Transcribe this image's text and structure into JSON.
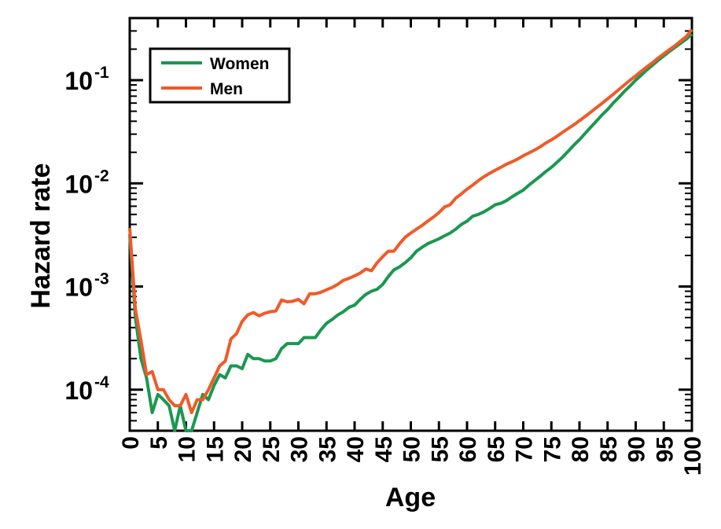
{
  "chart_data": {
    "type": "line",
    "title": "",
    "xlabel": "Age",
    "ylabel": "Hazard rate",
    "xlim": [
      0,
      100
    ],
    "ylim": [
      4e-05,
      0.4
    ],
    "yscale": "log",
    "grid": false,
    "legend_position": "top-left",
    "x_ticks": [
      0,
      5,
      10,
      15,
      20,
      25,
      30,
      35,
      40,
      45,
      50,
      55,
      60,
      65,
      70,
      75,
      80,
      85,
      90,
      95,
      100
    ],
    "y_ticks": [
      {
        "value": 0.0001,
        "base": "10",
        "exp": "-4"
      },
      {
        "value": 0.001,
        "base": "10",
        "exp": "-3"
      },
      {
        "value": 0.01,
        "base": "10",
        "exp": "-2"
      },
      {
        "value": 0.1,
        "base": "10",
        "exp": "-1"
      }
    ],
    "colors": {
      "women": "#1a9850",
      "men": "#f05a28"
    },
    "series": [
      {
        "name": "Women",
        "color": "#1a9850",
        "points": [
          [
            0,
            0.0032
          ],
          [
            1,
            0.0005
          ],
          [
            2,
            0.0002
          ],
          [
            3,
            0.00013
          ],
          [
            4,
            6e-05
          ],
          [
            5,
            9e-05
          ],
          [
            6,
            8e-05
          ],
          [
            7,
            7e-05
          ],
          [
            8,
            4e-05
          ],
          [
            9,
            7e-05
          ],
          [
            10,
            4e-05
          ],
          [
            11,
            4e-05
          ],
          [
            12,
            6e-05
          ],
          [
            13,
            9e-05
          ],
          [
            14,
            8e-05
          ],
          [
            15,
            0.00011
          ],
          [
            16,
            0.00014
          ],
          [
            17,
            0.00013
          ],
          [
            18,
            0.00017
          ],
          [
            19,
            0.00017
          ],
          [
            20,
            0.00016
          ],
          [
            21,
            0.00022
          ],
          [
            22,
            0.0002
          ],
          [
            23,
            0.0002
          ],
          [
            24,
            0.00019
          ],
          [
            25,
            0.00019
          ],
          [
            26,
            0.0002
          ],
          [
            27,
            0.00025
          ],
          [
            28,
            0.00028
          ],
          [
            29,
            0.00028
          ],
          [
            30,
            0.00028
          ],
          [
            31,
            0.00032
          ],
          [
            32,
            0.00032
          ],
          [
            33,
            0.00032
          ],
          [
            34,
            0.00038
          ],
          [
            35,
            0.00044
          ],
          [
            36,
            0.00048
          ],
          [
            37,
            0.00053
          ],
          [
            38,
            0.00057
          ],
          [
            39,
            0.00063
          ],
          [
            40,
            0.00066
          ],
          [
            41,
            0.00075
          ],
          [
            42,
            0.00084
          ],
          [
            43,
            0.0009
          ],
          [
            44,
            0.00094
          ],
          [
            45,
            0.00105
          ],
          [
            46,
            0.00125
          ],
          [
            47,
            0.00145
          ],
          [
            48,
            0.00155
          ],
          [
            49,
            0.0017
          ],
          [
            50,
            0.0019
          ],
          [
            51,
            0.0022
          ],
          [
            52,
            0.0024
          ],
          [
            53,
            0.0026
          ],
          [
            54,
            0.00275
          ],
          [
            55,
            0.0029
          ],
          [
            56,
            0.0031
          ],
          [
            57,
            0.0033
          ],
          [
            58,
            0.0036
          ],
          [
            59,
            0.004
          ],
          [
            60,
            0.0043
          ],
          [
            61,
            0.0048
          ],
          [
            62,
            0.005
          ],
          [
            63,
            0.0053
          ],
          [
            64,
            0.0057
          ],
          [
            65,
            0.0062
          ],
          [
            66,
            0.0064
          ],
          [
            67,
            0.0068
          ],
          [
            68,
            0.0074
          ],
          [
            69,
            0.008
          ],
          [
            70,
            0.0086
          ],
          [
            71,
            0.0096
          ],
          [
            72,
            0.0106
          ],
          [
            73,
            0.0117
          ],
          [
            74,
            0.013
          ],
          [
            75,
            0.0143
          ],
          [
            76,
            0.016
          ],
          [
            77,
            0.018
          ],
          [
            78,
            0.0205
          ],
          [
            79,
            0.0235
          ],
          [
            80,
            0.0265
          ],
          [
            81,
            0.0305
          ],
          [
            82,
            0.035
          ],
          [
            83,
            0.04
          ],
          [
            84,
            0.046
          ],
          [
            85,
            0.052
          ],
          [
            86,
            0.06
          ],
          [
            87,
            0.068
          ],
          [
            88,
            0.078
          ],
          [
            89,
            0.088
          ],
          [
            90,
            0.1
          ],
          [
            91,
            0.112
          ],
          [
            92,
            0.126
          ],
          [
            93,
            0.14
          ],
          [
            94,
            0.156
          ],
          [
            95,
            0.172
          ],
          [
            96,
            0.19
          ],
          [
            97,
            0.208
          ],
          [
            98,
            0.228
          ],
          [
            99,
            0.25
          ],
          [
            100,
            0.28
          ]
        ]
      },
      {
        "name": "Men",
        "color": "#f05a28",
        "points": [
          [
            0,
            0.0037
          ],
          [
            1,
            0.0006
          ],
          [
            2,
            0.0003
          ],
          [
            3,
            0.00014
          ],
          [
            4,
            0.00015
          ],
          [
            5,
            0.0001
          ],
          [
            6,
            0.0001
          ],
          [
            7,
            8e-05
          ],
          [
            8,
            7e-05
          ],
          [
            9,
            7e-05
          ],
          [
            10,
            9e-05
          ],
          [
            11,
            6e-05
          ],
          [
            12,
            8e-05
          ],
          [
            13,
            8e-05
          ],
          [
            14,
            0.0001
          ],
          [
            15,
            0.00013
          ],
          [
            16,
            0.00017
          ],
          [
            17,
            0.00019
          ],
          [
            18,
            0.00031
          ],
          [
            19,
            0.00035
          ],
          [
            20,
            0.00046
          ],
          [
            21,
            0.00053
          ],
          [
            22,
            0.00056
          ],
          [
            23,
            0.00052
          ],
          [
            24,
            0.00055
          ],
          [
            25,
            0.00057
          ],
          [
            26,
            0.00058
          ],
          [
            27,
            0.00074
          ],
          [
            28,
            0.00071
          ],
          [
            29,
            0.00072
          ],
          [
            30,
            0.00075
          ],
          [
            31,
            0.00068
          ],
          [
            32,
            0.00085
          ],
          [
            33,
            0.00085
          ],
          [
            34,
            0.00088
          ],
          [
            35,
            0.00093
          ],
          [
            36,
            0.00098
          ],
          [
            37,
            0.00105
          ],
          [
            38,
            0.00115
          ],
          [
            39,
            0.0012
          ],
          [
            40,
            0.00127
          ],
          [
            41,
            0.00135
          ],
          [
            42,
            0.00148
          ],
          [
            43,
            0.00142
          ],
          [
            44,
            0.0017
          ],
          [
            45,
            0.00195
          ],
          [
            46,
            0.0022
          ],
          [
            47,
            0.0022
          ],
          [
            48,
            0.0026
          ],
          [
            49,
            0.003
          ],
          [
            50,
            0.0033
          ],
          [
            51,
            0.0036
          ],
          [
            52,
            0.0039
          ],
          [
            53,
            0.0043
          ],
          [
            54,
            0.0047
          ],
          [
            55,
            0.0052
          ],
          [
            56,
            0.0059
          ],
          [
            57,
            0.0062
          ],
          [
            58,
            0.0072
          ],
          [
            59,
            0.0079
          ],
          [
            60,
            0.0088
          ],
          [
            61,
            0.0096
          ],
          [
            62,
            0.0106
          ],
          [
            63,
            0.0116
          ],
          [
            64,
            0.0125
          ],
          [
            65,
            0.0134
          ],
          [
            66,
            0.0143
          ],
          [
            67,
            0.0153
          ],
          [
            68,
            0.0162
          ],
          [
            69,
            0.0172
          ],
          [
            70,
            0.0185
          ],
          [
            71,
            0.0197
          ],
          [
            72,
            0.021
          ],
          [
            73,
            0.0226
          ],
          [
            74,
            0.0246
          ],
          [
            75,
            0.0264
          ],
          [
            76,
            0.0286
          ],
          [
            77,
            0.0313
          ],
          [
            78,
            0.034
          ],
          [
            79,
            0.037
          ],
          [
            80,
            0.0405
          ],
          [
            81,
            0.0445
          ],
          [
            82,
            0.049
          ],
          [
            83,
            0.054
          ],
          [
            84,
            0.0595
          ],
          [
            85,
            0.066
          ],
          [
            86,
            0.073
          ],
          [
            87,
            0.081
          ],
          [
            88,
            0.09
          ],
          [
            89,
            0.1
          ],
          [
            90,
            0.11
          ],
          [
            91,
            0.122
          ],
          [
            92,
            0.135
          ],
          [
            93,
            0.148
          ],
          [
            94,
            0.164
          ],
          [
            95,
            0.18
          ],
          [
            96,
            0.198
          ],
          [
            97,
            0.216
          ],
          [
            98,
            0.24
          ],
          [
            99,
            0.265
          ],
          [
            100,
            0.31
          ]
        ]
      }
    ]
  }
}
